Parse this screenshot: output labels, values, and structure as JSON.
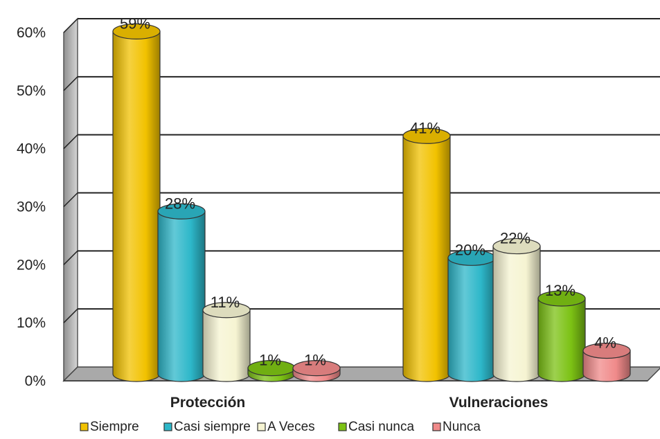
{
  "chart_data": {
    "type": "bar",
    "categories": [
      "Protección",
      "Vulneraciones"
    ],
    "series": [
      {
        "name": "Siempre",
        "values": [
          59,
          41
        ],
        "color": "#F2C200",
        "labels": [
          "59%",
          "41%"
        ]
      },
      {
        "name": "Casi siempre",
        "values": [
          28,
          20
        ],
        "color": "#2DB7C9",
        "labels": [
          "28%",
          "20%"
        ]
      },
      {
        "name": "A Veces",
        "values": [
          11,
          22
        ],
        "color": "#F6F4D2",
        "labels": [
          "11%",
          "22%"
        ]
      },
      {
        "name": "Casi nunca",
        "values": [
          1,
          13
        ],
        "color": "#7CC214",
        "labels": [
          "1%",
          "13%"
        ]
      },
      {
        "name": "Nunca",
        "values": [
          1,
          4
        ],
        "color": "#F08A8A",
        "labels": [
          "1%",
          "4%"
        ]
      }
    ],
    "y_ticks": [
      "0%",
      "10%",
      "20%",
      "30%",
      "40%",
      "50%",
      "60%"
    ],
    "ylim": [
      0,
      60
    ],
    "grid": true,
    "legend_position": "bottom",
    "style": "3d-cylinder"
  }
}
